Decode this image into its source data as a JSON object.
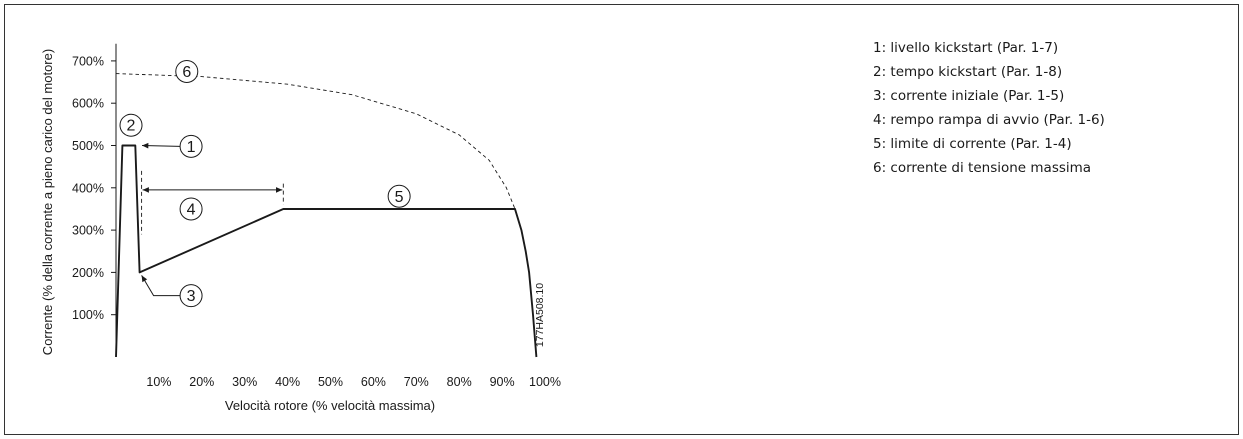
{
  "chart_data": {
    "type": "line",
    "xlabel": "Velocità rotore (% velocità massima)",
    "ylabel": "Corrente (% della corrente a pieno carico del motore)",
    "xlim": [
      0,
      100
    ],
    "ylim": [
      0,
      750
    ],
    "x_ticks": [
      10,
      20,
      30,
      40,
      50,
      60,
      70,
      80,
      90,
      100
    ],
    "x_tick_labels": [
      "10%",
      "20%",
      "30%",
      "40%",
      "50%",
      "60%",
      "70%",
      "80%",
      "90%",
      "100%"
    ],
    "y_ticks": [
      100,
      200,
      300,
      400,
      500,
      600,
      700
    ],
    "y_tick_labels": [
      "100%",
      "200%",
      "300%",
      "400%",
      "500%",
      "600%",
      "700%"
    ],
    "grid": false,
    "series": [
      {
        "style": "solid",
        "points": [
          [
            0,
            0
          ],
          [
            1.5,
            500
          ],
          [
            4.5,
            500
          ],
          [
            5.5,
            200
          ],
          [
            39,
            350
          ],
          [
            93,
            350
          ],
          [
            94.5,
            300
          ],
          [
            95.5,
            250
          ],
          [
            96.3,
            200
          ],
          [
            97.2,
            100
          ],
          [
            98,
            0
          ]
        ]
      },
      {
        "style": "dashed",
        "points": [
          [
            0,
            670
          ],
          [
            20,
            663
          ],
          [
            40,
            645
          ],
          [
            55,
            620
          ],
          [
            70,
            575
          ],
          [
            80,
            525
          ],
          [
            87,
            465
          ],
          [
            91,
            400
          ],
          [
            93,
            350
          ]
        ]
      }
    ],
    "annotations": [
      {
        "number": "1",
        "x": 7,
        "y": 500
      },
      {
        "number": "2",
        "x": 3,
        "y": 535
      },
      {
        "number": "3",
        "x": 5.5,
        "y": 200
      },
      {
        "number": "4",
        "x": 22,
        "y": 350
      },
      {
        "number": "5",
        "x": 66,
        "y": 350
      },
      {
        "number": "6",
        "x": 14,
        "y": 670
      }
    ],
    "span_marker": {
      "from": 5.5,
      "to": 39
    }
  },
  "figure_code": "177HA508.10",
  "legend": [
    "1: livello kickstart (Par. 1-7)",
    "2: tempo kickstart (Par. 1-8)",
    "3: corrente iniziale (Par. 1-5)",
    "4: rempo rampa di avvio (Par. 1-6)",
    "5: limite di corrente (Par. 1-4)",
    "6: corrente di tensione massima"
  ]
}
